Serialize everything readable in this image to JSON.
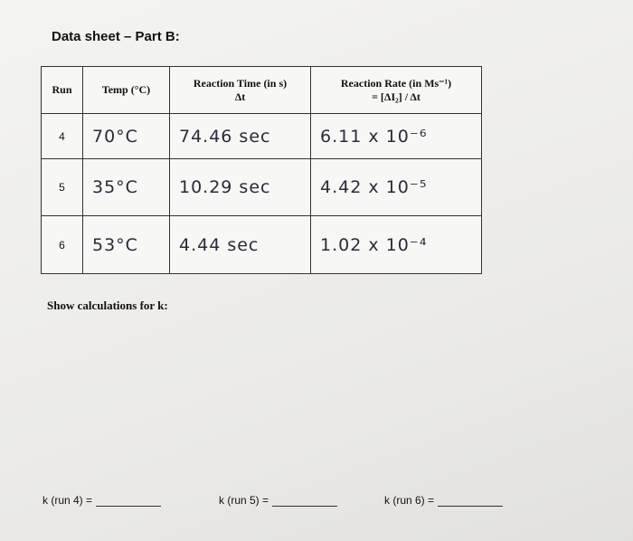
{
  "header": {
    "title": "Data sheet – Part B:"
  },
  "table": {
    "columns": [
      {
        "lines": [
          "Run"
        ]
      },
      {
        "lines": [
          "Temp (°C)"
        ]
      },
      {
        "lines": [
          "Reaction Time (in s)",
          "Δt"
        ]
      },
      {
        "lines": [
          "Reaction Rate (in Ms⁻¹)",
          "= [ΔI₂] / Δt"
        ]
      }
    ],
    "rows": [
      [
        "4",
        "70°C",
        "74.46 sec",
        "6.11 x 10⁻⁶"
      ],
      [
        "5",
        "35°C",
        "10.29 sec",
        "4.42 x 10⁻⁵"
      ],
      [
        "6",
        "53°C",
        "4.44 sec",
        "1.02 x 10⁻⁴"
      ]
    ]
  },
  "calculations": {
    "prompt": "Show calculations for k:",
    "answers": [
      "k (run 4) =",
      "k (run 5) =",
      "k (run 6) ="
    ]
  }
}
